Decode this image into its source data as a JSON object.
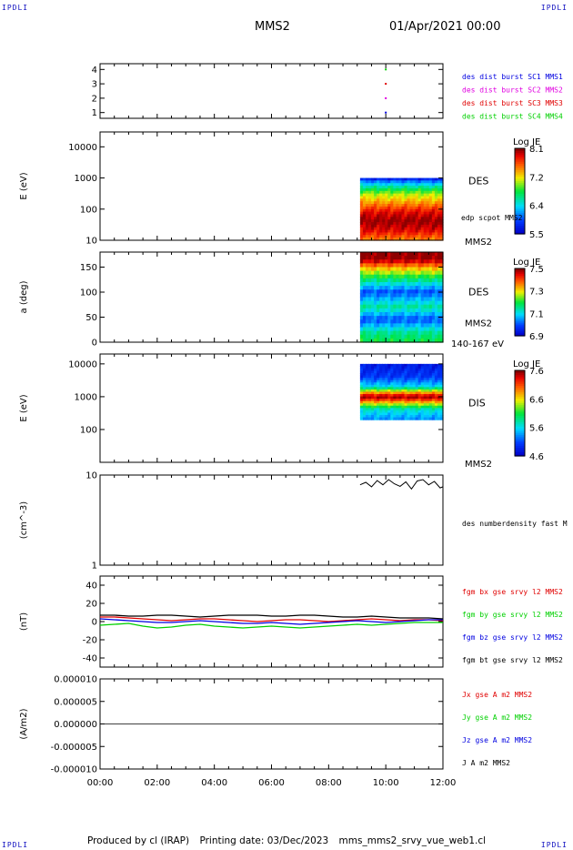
{
  "corners": {
    "tl": "IPDLI",
    "tr": "IPDLI",
    "bl": "IPDLI",
    "br": "IPDLI"
  },
  "header": {
    "spacecraft": "MMS2",
    "datetime": "01/Apr/2021 00:00"
  },
  "footer": {
    "produced_by": "Produced by cl (IRAP)",
    "printing_date": "Printing date: 03/Dec/2023",
    "script_name": "mms_mms2_srvy_vue_web1.cl"
  },
  "colors": {
    "blue": "#0000e0",
    "magenta": "#e000e0",
    "red": "#e00000",
    "green": "#00d000",
    "black": "#000000"
  },
  "chart_data": [
    {
      "type": "scatter",
      "id": "burst",
      "ylim": [
        0.6,
        4.4
      ],
      "yticks": [
        "1",
        "2",
        "3",
        "4"
      ],
      "legend": [
        {
          "label": "des dist burst SC1 MMS1",
          "color": "#0000e0"
        },
        {
          "label": "des dist burst SC2 MMS2",
          "color": "#e000e0"
        },
        {
          "label": "des dist burst SC3 MMS3",
          "color": "#e00000"
        },
        {
          "label": "des dist burst SC4 MMS4",
          "color": "#00d000"
        }
      ],
      "points": [
        {
          "x": 10.0,
          "y": 4,
          "color": "#00d000"
        },
        {
          "x": 10.0,
          "y": 3,
          "color": "#e00000"
        },
        {
          "x": 10.0,
          "y": 2,
          "color": "#e000e0"
        },
        {
          "x": 10.0,
          "y": 1,
          "color": "#0000e0"
        }
      ]
    },
    {
      "type": "heatmap",
      "id": "des_energy",
      "ylabel": "E (eV)",
      "yscale": "log",
      "ylim": [
        10,
        30000
      ],
      "yticks": [
        "10",
        "100",
        "1000",
        "10000"
      ],
      "data_x": [
        9.1,
        12.0
      ],
      "data_y": [
        10,
        1000
      ],
      "label": "DES",
      "extra_labels": [
        "edp scpot MMS2",
        "MMS2"
      ],
      "colorbar": {
        "title": "Log JE",
        "min": 5.5,
        "max": 8.1,
        "ticks": [
          "8.1",
          "7.2",
          "6.4",
          "5.5"
        ]
      },
      "profile": [
        [
          10,
          7.5
        ],
        [
          20,
          7.9
        ],
        [
          40,
          8.1
        ],
        [
          80,
          7.9
        ],
        [
          150,
          7.5
        ],
        [
          300,
          7.1
        ],
        [
          500,
          6.6
        ],
        [
          800,
          6.0
        ],
        [
          1000,
          5.6
        ]
      ]
    },
    {
      "type": "heatmap",
      "id": "des_pitch",
      "ylabel": "a (deg)",
      "ylim": [
        0,
        180
      ],
      "yticks": [
        "0",
        "50",
        "100",
        "150"
      ],
      "data_x": [
        9.1,
        12.0
      ],
      "data_y": [
        0,
        180
      ],
      "label": "DES",
      "extra_labels": [
        "MMS2",
        "140-167 eV"
      ],
      "colorbar": {
        "title": "Log JE",
        "min": 6.9,
        "max": 7.5,
        "ticks": [
          "7.5",
          "7.3",
          "7.1",
          "6.9"
        ]
      },
      "profile": [
        [
          0,
          7.2
        ],
        [
          20,
          7.15
        ],
        [
          45,
          7.0
        ],
        [
          70,
          7.15
        ],
        [
          100,
          7.0
        ],
        [
          130,
          7.2
        ],
        [
          150,
          7.35
        ],
        [
          165,
          7.5
        ],
        [
          180,
          7.5
        ]
      ]
    },
    {
      "type": "heatmap",
      "id": "dis_energy",
      "ylabel": "E (eV)",
      "yscale": "log",
      "ylim": [
        10,
        20000
      ],
      "yticks": [
        "100",
        "1000",
        "10000"
      ],
      "data_x": [
        9.1,
        12.0
      ],
      "data_y": [
        200,
        10000
      ],
      "label": "DIS",
      "extra_labels": [
        "MMS2"
      ],
      "colorbar": {
        "title": "Log JE",
        "min": 4.6,
        "max": 7.6,
        "ticks": [
          "7.6",
          "6.6",
          "5.6",
          "4.6"
        ]
      },
      "profile": [
        [
          200,
          5.3
        ],
        [
          400,
          5.7
        ],
        [
          600,
          6.5
        ],
        [
          800,
          7.2
        ],
        [
          1000,
          7.6
        ],
        [
          1300,
          6.9
        ],
        [
          2000,
          5.6
        ],
        [
          4000,
          5.0
        ],
        [
          10000,
          4.8
        ]
      ]
    },
    {
      "type": "line",
      "id": "density",
      "ylabel": "(cm^-3)",
      "yscale": "log",
      "ylim": [
        1,
        10
      ],
      "yticks": [
        "1",
        "10"
      ],
      "legend": [
        {
          "label": "des numberdensity fast M",
          "color": "#000000"
        }
      ],
      "x": [
        9.1,
        9.3,
        9.5,
        9.7,
        9.9,
        10.1,
        10.3,
        10.5,
        10.7,
        10.9,
        11.1,
        11.3,
        11.5,
        11.7,
        11.9,
        12.0
      ],
      "y": [
        7.8,
        8.3,
        7.4,
        8.7,
        7.8,
        8.9,
        8.0,
        7.5,
        8.4,
        7.0,
        8.6,
        8.9,
        7.8,
        8.5,
        7.2,
        7.4
      ]
    },
    {
      "type": "line",
      "id": "fgm",
      "ylabel": "(nT)",
      "ylim": [
        -50,
        50
      ],
      "yticks": [
        "-40",
        "-20",
        "0",
        "20",
        "40"
      ],
      "x": [
        0,
        0.5,
        1,
        1.5,
        2,
        2.5,
        3,
        3.5,
        4,
        4.5,
        5,
        5.5,
        6,
        6.5,
        7,
        7.5,
        8,
        8.5,
        9,
        9.5,
        10,
        10.5,
        11,
        11.5,
        12
      ],
      "series": [
        {
          "name": "fgm bx gse srvy l2 MMS2",
          "color": "#e00000",
          "values": [
            5,
            5,
            4,
            3,
            2,
            1,
            2,
            3,
            3,
            2,
            1,
            0,
            1,
            2,
            2,
            1,
            0,
            1,
            2,
            3,
            2,
            1,
            2,
            2,
            1
          ]
        },
        {
          "name": "fgm by gse srvy l2 MMS2",
          "color": "#00d000",
          "values": [
            -4,
            -3,
            -2,
            -5,
            -7,
            -6,
            -4,
            -3,
            -5,
            -6,
            -7,
            -6,
            -5,
            -6,
            -7,
            -6,
            -5,
            -4,
            -3,
            -4,
            -3,
            -2,
            -1,
            -1,
            -1
          ]
        },
        {
          "name": "fgm bz gse srvy l2 MMS2",
          "color": "#0000e0",
          "values": [
            3,
            2,
            1,
            0,
            -1,
            -1,
            0,
            1,
            0,
            -1,
            -2,
            -2,
            -1,
            -2,
            -3,
            -2,
            -1,
            0,
            1,
            0,
            -1,
            0,
            1,
            2,
            2
          ]
        },
        {
          "name": "fgm bt gse srvy l2 MMS2",
          "color": "#000000",
          "values": [
            7,
            7,
            6,
            6,
            7,
            7,
            6,
            5,
            6,
            7,
            7,
            7,
            6,
            6,
            7,
            7,
            6,
            5,
            5,
            6,
            5,
            4,
            4,
            4,
            3
          ]
        }
      ]
    },
    {
      "type": "line",
      "id": "current",
      "ylabel": "(A/m2)",
      "ylim": [
        -1e-05,
        1e-05
      ],
      "yticks": [
        "-0.000010",
        "-0.000005",
        "0.000000",
        "0.000005",
        "0.000010"
      ],
      "xticks": [
        "00:00",
        "02:00",
        "04:00",
        "06:00",
        "08:00",
        "10:00",
        "12:00"
      ],
      "xlim": [
        0,
        12
      ],
      "legend": [
        {
          "label": "Jx gse A m2 MMS2",
          "color": "#e00000"
        },
        {
          "label": "Jy gse A m2 MMS2",
          "color": "#00d000"
        },
        {
          "label": "Jz gse A m2 MMS2",
          "color": "#0000e0"
        },
        {
          "label": "J A m2 MMS2",
          "color": "#000000"
        }
      ],
      "x": [
        0,
        12
      ],
      "y": [
        0,
        0
      ]
    }
  ]
}
